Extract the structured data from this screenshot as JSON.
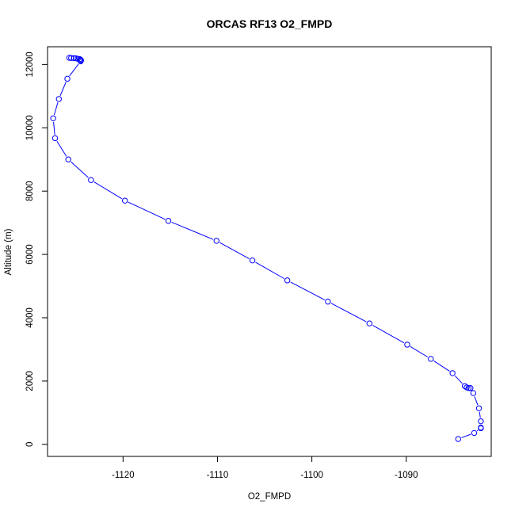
{
  "chart_data": {
    "type": "line",
    "title": "ORCAS RF13 O2_FMPD",
    "xlabel": "O2_FMPD",
    "ylabel": "Altitude (m)",
    "xlim": [
      -1128.0,
      -1081.0
    ],
    "ylim": [
      -380,
      12560
    ],
    "xticks": [
      -1120,
      -1110,
      -1100,
      -1090
    ],
    "yticks": [
      0,
      2000,
      4000,
      6000,
      8000,
      10000,
      12000
    ],
    "xtick_labels": [
      "-1120",
      "-1110",
      "-1100",
      "-1090"
    ],
    "ytick_labels": [
      "0",
      "2000",
      "4000",
      "6000",
      "8000",
      "10000",
      "12000"
    ],
    "series": [
      {
        "name": "",
        "color": "#0000ff",
        "marker": "open-circle",
        "x": [
          -1125.7,
          -1125.5,
          -1125.2,
          -1125.0,
          -1124.8,
          -1124.6,
          -1124.5,
          -1124.45,
          -1124.5,
          -1125.9,
          -1126.8,
          -1127.4,
          -1127.2,
          -1125.8,
          -1123.4,
          -1119.8,
          -1115.2,
          -1110.1,
          -1106.3,
          -1102.6,
          -1098.3,
          -1093.9,
          -1089.9,
          -1087.4,
          -1085.1,
          -1083.8,
          -1083.6,
          -1083.4,
          -1083.2,
          -1082.9,
          -1082.3,
          -1082.1,
          -1082.1,
          -1082.1,
          -1082.8,
          -1084.5
        ],
        "y": [
          12210,
          12205,
          12200,
          12195,
          12180,
          12170,
          12150,
          12130,
          12100,
          11550,
          10910,
          10300,
          9670,
          9000,
          8350,
          7700,
          7060,
          6430,
          5810,
          5180,
          4510,
          3820,
          3150,
          2700,
          2250,
          1840,
          1800,
          1780,
          1780,
          1620,
          1140,
          730,
          530,
          510,
          360,
          170
        ]
      }
    ]
  }
}
